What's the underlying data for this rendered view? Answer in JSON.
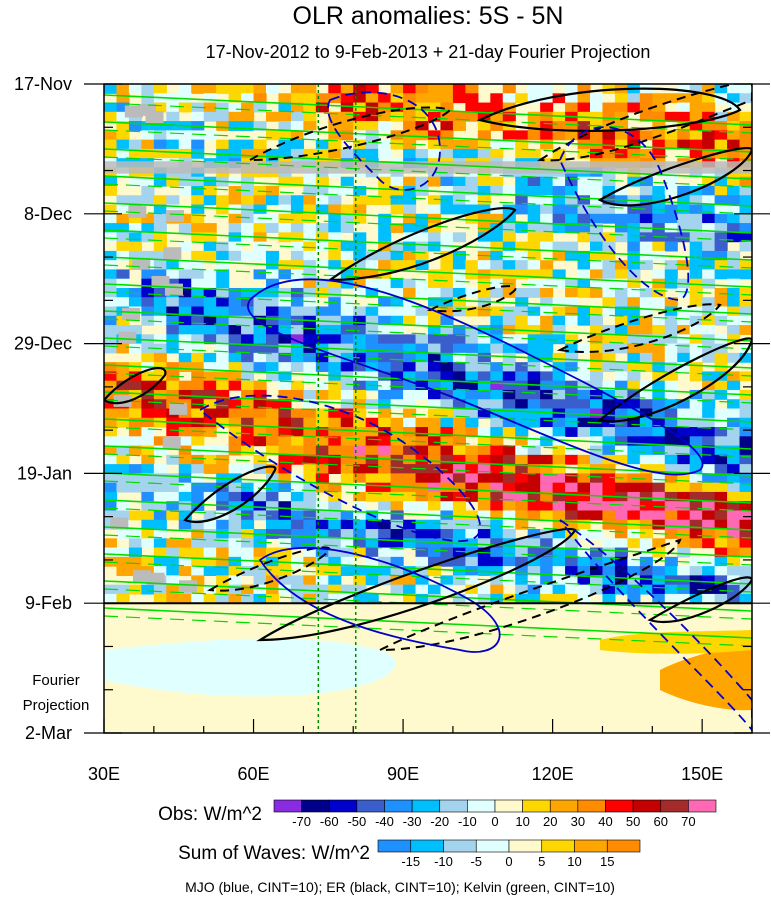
{
  "chart_data": {
    "type": "heatmap",
    "title": "OLR anomalies: 5S - 5N",
    "subtitle": "17-Nov-2012 to 9-Feb-2013 + 21-day Fourier Projection",
    "x": {
      "ticks": [
        "30E",
        "60E",
        "90E",
        "120E",
        "150E"
      ],
      "tick_values": [
        30,
        60,
        90,
        120,
        150
      ],
      "range": [
        30,
        160
      ]
    },
    "y": {
      "ticks": [
        "17-Nov",
        "8-Dec",
        "29-Dec",
        "19-Jan",
        "9-Feb",
        "2-Mar"
      ],
      "tick_days": [
        0,
        21,
        42,
        63,
        84,
        105
      ],
      "range_days": [
        0,
        105
      ],
      "minor_step_days": 7
    },
    "observation_end_day": 84,
    "projection_label": [
      "Fourier",
      "Projection"
    ],
    "reference_lines_lon": [
      73,
      80.5
    ],
    "colorbars": [
      {
        "label": "Obs: W/m^2",
        "ticks": [
          "-70",
          "-60",
          "-50",
          "-40",
          "-30",
          "-20",
          "-10",
          "0",
          "10",
          "20",
          "30",
          "40",
          "50",
          "60",
          "70"
        ],
        "colors": [
          "#8a2be2",
          "#00008b",
          "#0000cd",
          "#3a5fcd",
          "#1e90ff",
          "#00bfff",
          "#a4d3ee",
          "#e0ffff",
          "#fffacd",
          "#ffd700",
          "#ffa500",
          "#ff8c00",
          "#ff0000",
          "#c40000",
          "#a52a2a",
          "#ff69b4"
        ]
      },
      {
        "label": "Sum of Waves: W/m^2",
        "ticks": [
          "-15",
          "-10",
          "-5",
          "0",
          "5",
          "10",
          "15"
        ],
        "colors": [
          "#1e90ff",
          "#00bfff",
          "#a4d3ee",
          "#e0ffff",
          "#fffacd",
          "#ffd700",
          "#ffa500",
          "#ff8c00"
        ]
      }
    ],
    "legend_note": "MJO (blue, CINT=10); ER (black, CINT=10); Kelvin (green, CINT=10)",
    "series": [
      {
        "name": "MJO",
        "color": "#0000cd",
        "cint": 10
      },
      {
        "name": "ER",
        "color": "#000000",
        "cint": 10
      },
      {
        "name": "Kelvin",
        "color": "#00dd00",
        "cint": 10
      }
    ]
  }
}
